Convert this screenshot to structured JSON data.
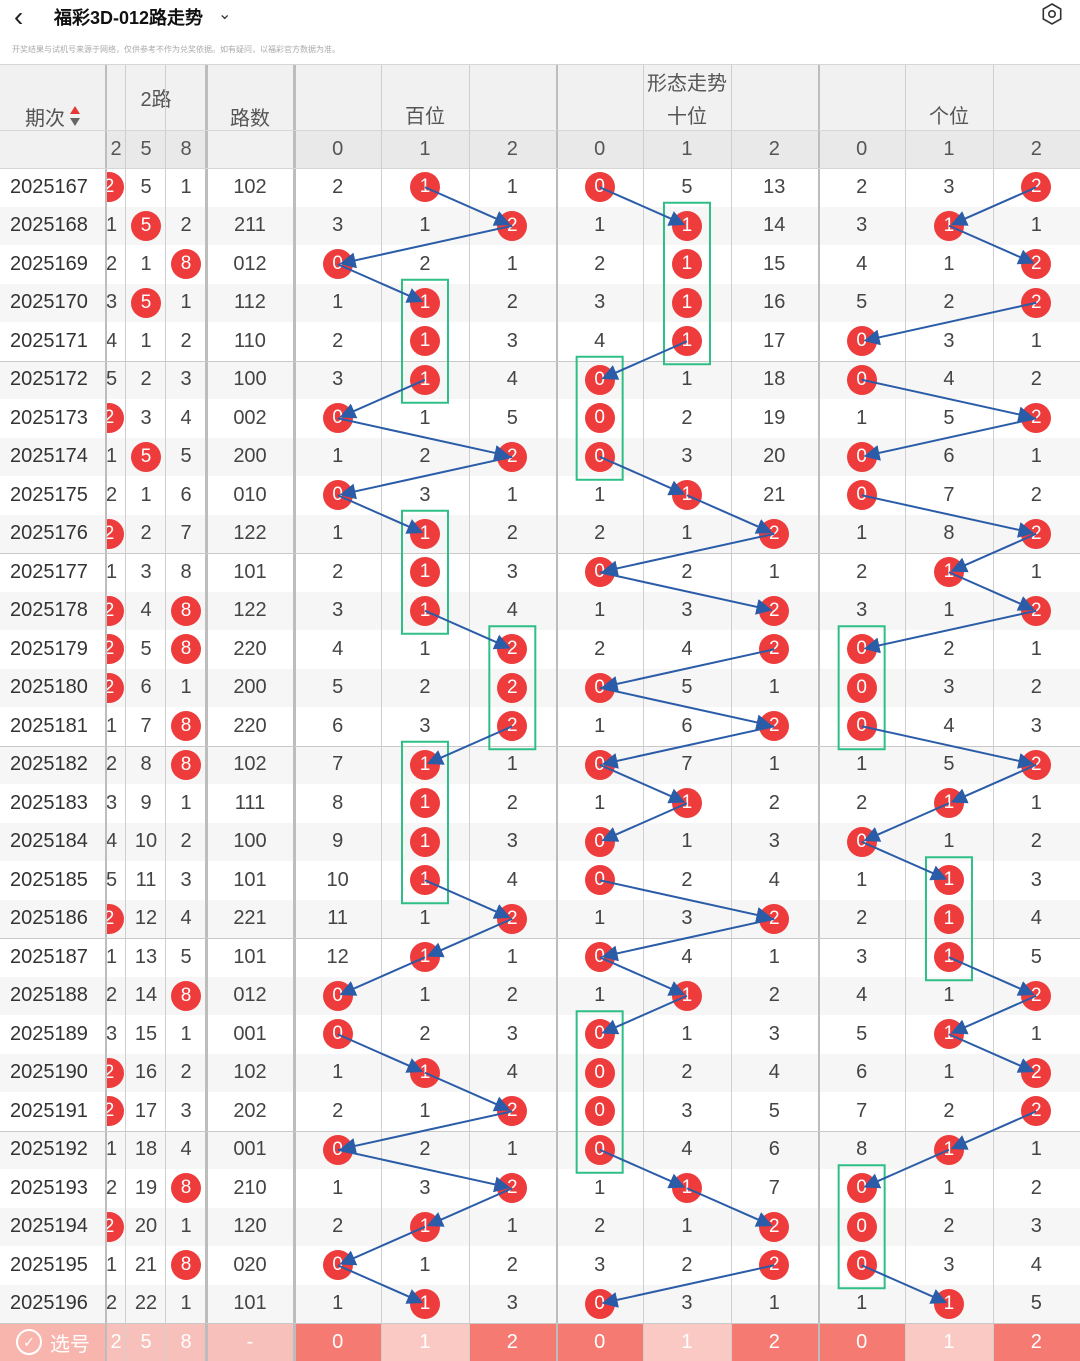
{
  "header": {
    "back_icon": "chevron-left-icon",
    "title": "福彩3D-012路走势",
    "dropdown_icon": "chevron-down-icon",
    "settings_icon": "gear-icon",
    "notice": "开奖结果与试机号来源于网络，仅供参考不作为兑奖依据。如有疑问，以福彩官方数据为准。"
  },
  "table": {
    "col_period": "期次",
    "sort_icon": "sort-icon",
    "col_group_road": "2路",
    "road_nums": [
      "2",
      "5",
      "8"
    ],
    "col_lushu": "路数",
    "col_trend": "形态走势",
    "trend_groups": [
      "百位",
      "十位",
      "个位"
    ],
    "trend_digits": [
      "0",
      "1",
      "2"
    ],
    "colors": {
      "ball": "#ee3b3b",
      "arrow": "#2a5ca8",
      "box": "#2fbf86",
      "bottom": "#f7847d"
    }
  },
  "rows": [
    {
      "p": "2025167",
      "r": [
        "2",
        "5",
        "1"
      ],
      "rh": [
        true,
        false,
        false
      ],
      "l": "102",
      "b": [
        "2",
        "1",
        "1"
      ],
      "bh": 1,
      "s": [
        "0",
        "5",
        "13"
      ],
      "sh": 0,
      "g": [
        "2",
        "3",
        "2"
      ],
      "gh": 2
    },
    {
      "p": "2025168",
      "r": [
        "1",
        "5",
        "2"
      ],
      "rh": [
        false,
        true,
        false
      ],
      "l": "211",
      "b": [
        "3",
        "1",
        "2"
      ],
      "bh": 2,
      "s": [
        "1",
        "1",
        "14"
      ],
      "sh": 1,
      "g": [
        "3",
        "1",
        "1"
      ],
      "gh": 1
    },
    {
      "p": "2025169",
      "r": [
        "2",
        "1",
        "8"
      ],
      "rh": [
        false,
        false,
        true
      ],
      "l": "012",
      "b": [
        "0",
        "2",
        "1"
      ],
      "bh": 0,
      "s": [
        "2",
        "1",
        "15"
      ],
      "sh": 1,
      "g": [
        "4",
        "1",
        "2"
      ],
      "gh": 2
    },
    {
      "p": "2025170",
      "r": [
        "3",
        "5",
        "1"
      ],
      "rh": [
        false,
        true,
        false
      ],
      "l": "112",
      "b": [
        "1",
        "1",
        "2"
      ],
      "bh": 1,
      "s": [
        "3",
        "1",
        "16"
      ],
      "sh": 1,
      "g": [
        "5",
        "2",
        "2"
      ],
      "gh": 2
    },
    {
      "p": "2025171",
      "r": [
        "4",
        "1",
        "2"
      ],
      "rh": [
        false,
        false,
        false
      ],
      "l": "110",
      "b": [
        "2",
        "1",
        "3"
      ],
      "bh": 1,
      "s": [
        "4",
        "1",
        "17"
      ],
      "sh": 1,
      "g": [
        "0",
        "3",
        "1"
      ],
      "gh": 0
    },
    {
      "p": "2025172",
      "r": [
        "5",
        "2",
        "3"
      ],
      "rh": [
        false,
        false,
        false
      ],
      "l": "100",
      "b": [
        "3",
        "1",
        "4"
      ],
      "bh": 1,
      "s": [
        "0",
        "1",
        "18"
      ],
      "sh": 0,
      "g": [
        "0",
        "4",
        "2"
      ],
      "gh": 0
    },
    {
      "p": "2025173",
      "r": [
        "2",
        "3",
        "4"
      ],
      "rh": [
        true,
        false,
        false
      ],
      "l": "002",
      "b": [
        "0",
        "1",
        "5"
      ],
      "bh": 0,
      "s": [
        "0",
        "2",
        "19"
      ],
      "sh": 0,
      "g": [
        "1",
        "5",
        "2"
      ],
      "gh": 2
    },
    {
      "p": "2025174",
      "r": [
        "1",
        "5",
        "5"
      ],
      "rh": [
        false,
        true,
        false
      ],
      "l": "200",
      "b": [
        "1",
        "2",
        "2"
      ],
      "bh": 2,
      "s": [
        "0",
        "3",
        "20"
      ],
      "sh": 0,
      "g": [
        "0",
        "6",
        "1"
      ],
      "gh": 0
    },
    {
      "p": "2025175",
      "r": [
        "2",
        "1",
        "6"
      ],
      "rh": [
        false,
        false,
        false
      ],
      "l": "010",
      "b": [
        "0",
        "3",
        "1"
      ],
      "bh": 0,
      "s": [
        "1",
        "1",
        "21"
      ],
      "sh": 1,
      "g": [
        "0",
        "7",
        "2"
      ],
      "gh": 0
    },
    {
      "p": "2025176",
      "r": [
        "2",
        "2",
        "7"
      ],
      "rh": [
        true,
        false,
        false
      ],
      "l": "122",
      "b": [
        "1",
        "1",
        "2"
      ],
      "bh": 1,
      "s": [
        "2",
        "1",
        "2"
      ],
      "sh": 2,
      "g": [
        "1",
        "8",
        "2"
      ],
      "gh": 2
    },
    {
      "p": "2025177",
      "r": [
        "1",
        "3",
        "8"
      ],
      "rh": [
        false,
        false,
        false
      ],
      "l": "101",
      "b": [
        "2",
        "1",
        "3"
      ],
      "bh": 1,
      "s": [
        "0",
        "2",
        "1"
      ],
      "sh": 0,
      "g": [
        "2",
        "1",
        "1"
      ],
      "gh": 1
    },
    {
      "p": "2025178",
      "r": [
        "2",
        "4",
        "8"
      ],
      "rh": [
        true,
        false,
        true
      ],
      "l": "122",
      "b": [
        "3",
        "1",
        "4"
      ],
      "bh": 1,
      "s": [
        "1",
        "3",
        "2"
      ],
      "sh": 2,
      "g": [
        "3",
        "1",
        "2"
      ],
      "gh": 2
    },
    {
      "p": "2025179",
      "r": [
        "2",
        "5",
        "8"
      ],
      "rh": [
        true,
        false,
        true
      ],
      "l": "220",
      "b": [
        "4",
        "1",
        "2"
      ],
      "bh": 2,
      "s": [
        "2",
        "4",
        "2"
      ],
      "sh": 2,
      "g": [
        "0",
        "2",
        "1"
      ],
      "gh": 0
    },
    {
      "p": "2025180",
      "r": [
        "2",
        "6",
        "1"
      ],
      "rh": [
        true,
        false,
        false
      ],
      "l": "200",
      "b": [
        "5",
        "2",
        "2"
      ],
      "bh": 2,
      "s": [
        "0",
        "5",
        "1"
      ],
      "sh": 0,
      "g": [
        "0",
        "3",
        "2"
      ],
      "gh": 0
    },
    {
      "p": "2025181",
      "r": [
        "1",
        "7",
        "8"
      ],
      "rh": [
        false,
        false,
        true
      ],
      "l": "220",
      "b": [
        "6",
        "3",
        "2"
      ],
      "bh": 2,
      "s": [
        "1",
        "6",
        "2"
      ],
      "sh": 2,
      "g": [
        "0",
        "4",
        "3"
      ],
      "gh": 0
    },
    {
      "p": "2025182",
      "r": [
        "2",
        "8",
        "8"
      ],
      "rh": [
        false,
        false,
        true
      ],
      "l": "102",
      "b": [
        "7",
        "1",
        "1"
      ],
      "bh": 1,
      "s": [
        "0",
        "7",
        "1"
      ],
      "sh": 0,
      "g": [
        "1",
        "5",
        "2"
      ],
      "gh": 2
    },
    {
      "p": "2025183",
      "r": [
        "3",
        "9",
        "1"
      ],
      "rh": [
        false,
        false,
        false
      ],
      "l": "111",
      "b": [
        "8",
        "1",
        "2"
      ],
      "bh": 1,
      "s": [
        "1",
        "1",
        "2"
      ],
      "sh": 1,
      "g": [
        "2",
        "1",
        "1"
      ],
      "gh": 1
    },
    {
      "p": "2025184",
      "r": [
        "4",
        "10",
        "2"
      ],
      "rh": [
        false,
        false,
        false
      ],
      "l": "100",
      "b": [
        "9",
        "1",
        "3"
      ],
      "bh": 1,
      "s": [
        "0",
        "1",
        "3"
      ],
      "sh": 0,
      "g": [
        "0",
        "1",
        "2"
      ],
      "gh": 0
    },
    {
      "p": "2025185",
      "r": [
        "5",
        "11",
        "3"
      ],
      "rh": [
        false,
        false,
        false
      ],
      "l": "101",
      "b": [
        "10",
        "1",
        "4"
      ],
      "bh": 1,
      "s": [
        "0",
        "2",
        "4"
      ],
      "sh": 0,
      "g": [
        "1",
        "1",
        "3"
      ],
      "gh": 1
    },
    {
      "p": "2025186",
      "r": [
        "2",
        "12",
        "4"
      ],
      "rh": [
        true,
        false,
        false
      ],
      "l": "221",
      "b": [
        "11",
        "1",
        "2"
      ],
      "bh": 2,
      "s": [
        "1",
        "3",
        "2"
      ],
      "sh": 2,
      "g": [
        "2",
        "1",
        "4"
      ],
      "gh": 1
    },
    {
      "p": "2025187",
      "r": [
        "1",
        "13",
        "5"
      ],
      "rh": [
        false,
        false,
        false
      ],
      "l": "101",
      "b": [
        "12",
        "1",
        "1"
      ],
      "bh": 1,
      "s": [
        "0",
        "4",
        "1"
      ],
      "sh": 0,
      "g": [
        "3",
        "1",
        "5"
      ],
      "gh": 1
    },
    {
      "p": "2025188",
      "r": [
        "2",
        "14",
        "8"
      ],
      "rh": [
        false,
        false,
        true
      ],
      "l": "012",
      "b": [
        "0",
        "1",
        "2"
      ],
      "bh": 0,
      "s": [
        "1",
        "1",
        "2"
      ],
      "sh": 1,
      "g": [
        "4",
        "1",
        "2"
      ],
      "gh": 2
    },
    {
      "p": "2025189",
      "r": [
        "3",
        "15",
        "1"
      ],
      "rh": [
        false,
        false,
        false
      ],
      "l": "001",
      "b": [
        "0",
        "2",
        "3"
      ],
      "bh": 0,
      "s": [
        "0",
        "1",
        "3"
      ],
      "sh": 0,
      "g": [
        "5",
        "1",
        "1"
      ],
      "gh": 1
    },
    {
      "p": "2025190",
      "r": [
        "2",
        "16",
        "2"
      ],
      "rh": [
        true,
        false,
        false
      ],
      "l": "102",
      "b": [
        "1",
        "1",
        "4"
      ],
      "bh": 1,
      "s": [
        "0",
        "2",
        "4"
      ],
      "sh": 0,
      "g": [
        "6",
        "1",
        "2"
      ],
      "gh": 2
    },
    {
      "p": "2025191",
      "r": [
        "2",
        "17",
        "3"
      ],
      "rh": [
        true,
        false,
        false
      ],
      "l": "202",
      "b": [
        "2",
        "1",
        "2"
      ],
      "bh": 2,
      "s": [
        "0",
        "3",
        "5"
      ],
      "sh": 0,
      "g": [
        "7",
        "2",
        "2"
      ],
      "gh": 2
    },
    {
      "p": "2025192",
      "r": [
        "1",
        "18",
        "4"
      ],
      "rh": [
        false,
        false,
        false
      ],
      "l": "001",
      "b": [
        "0",
        "2",
        "1"
      ],
      "bh": 0,
      "s": [
        "0",
        "4",
        "6"
      ],
      "sh": 0,
      "g": [
        "8",
        "1",
        "1"
      ],
      "gh": 1
    },
    {
      "p": "2025193",
      "r": [
        "2",
        "19",
        "8"
      ],
      "rh": [
        false,
        false,
        true
      ],
      "l": "210",
      "b": [
        "1",
        "3",
        "2"
      ],
      "bh": 2,
      "s": [
        "1",
        "1",
        "7"
      ],
      "sh": 1,
      "g": [
        "0",
        "1",
        "2"
      ],
      "gh": 0
    },
    {
      "p": "2025194",
      "r": [
        "2",
        "20",
        "1"
      ],
      "rh": [
        true,
        false,
        false
      ],
      "l": "120",
      "b": [
        "2",
        "1",
        "1"
      ],
      "bh": 1,
      "s": [
        "2",
        "1",
        "2"
      ],
      "sh": 2,
      "g": [
        "0",
        "2",
        "3"
      ],
      "gh": 0
    },
    {
      "p": "2025195",
      "r": [
        "1",
        "21",
        "8"
      ],
      "rh": [
        false,
        false,
        true
      ],
      "l": "020",
      "b": [
        "0",
        "1",
        "2"
      ],
      "bh": 0,
      "s": [
        "3",
        "2",
        "2"
      ],
      "sh": 2,
      "g": [
        "0",
        "3",
        "4"
      ],
      "gh": 0
    },
    {
      "p": "2025196",
      "r": [
        "2",
        "22",
        "1"
      ],
      "rh": [
        false,
        false,
        false
      ],
      "l": "101",
      "b": [
        "1",
        "1",
        "3"
      ],
      "bh": 1,
      "s": [
        "0",
        "3",
        "1"
      ],
      "sh": 0,
      "g": [
        "1",
        "1",
        "5"
      ],
      "gh": 1
    }
  ],
  "bottom": {
    "check_icon": "checkmark-icon",
    "label": "选号",
    "road_nums": [
      "2",
      "5",
      "8"
    ],
    "lushu": "-",
    "digits": [
      "0",
      "1",
      "2",
      "0",
      "1",
      "2",
      "0",
      "1",
      "2"
    ]
  }
}
